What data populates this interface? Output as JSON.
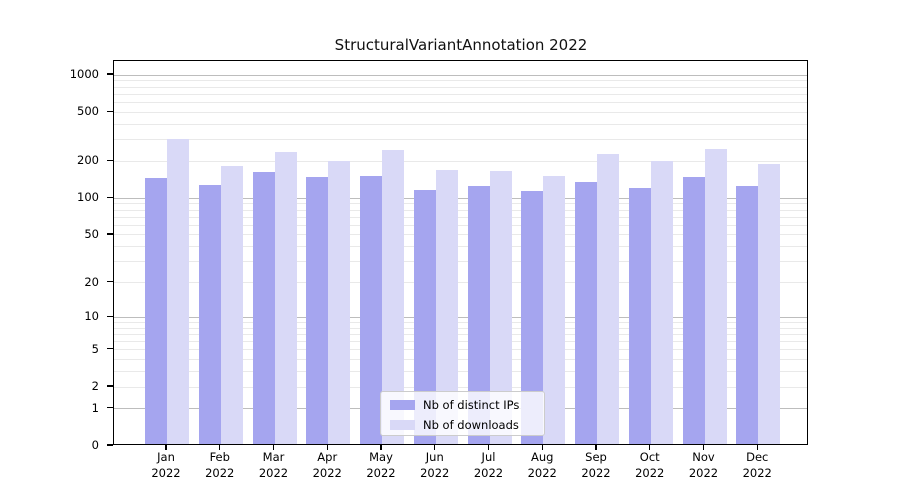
{
  "chart_data": {
    "type": "bar",
    "title": "StructuralVariantAnnotation 2022",
    "categories": [
      "Jan",
      "Feb",
      "Mar",
      "Apr",
      "May",
      "Jun",
      "Jul",
      "Aug",
      "Sep",
      "Oct",
      "Nov",
      "Dec"
    ],
    "category_year": "2022",
    "series": [
      {
        "name": "Nb of distinct IPs",
        "color": "#a5a5ef",
        "values": [
          144,
          126,
          162,
          147,
          148,
          114,
          124,
          113,
          132,
          119,
          145,
          124
        ]
      },
      {
        "name": "Nb of downloads",
        "color": "#d9d9f7",
        "values": [
          298,
          181,
          233,
          197,
          244,
          167,
          164,
          150,
          227,
          198,
          247,
          186
        ]
      }
    ],
    "y_axis": {
      "scale": "log1p",
      "tick_labels": [
        1000,
        500,
        200,
        100,
        50,
        20,
        10,
        5,
        2,
        1,
        0
      ],
      "minor_gridlines": [
        3,
        4,
        6,
        7,
        8,
        9,
        30,
        40,
        60,
        70,
        80,
        90,
        300,
        400,
        600,
        700,
        800,
        900
      ],
      "major_gridlines": [
        1,
        10,
        100,
        1000
      ],
      "ylim": [
        0,
        1300
      ]
    },
    "legend": {
      "position": "lower center"
    },
    "grid": true
  },
  "colors": {
    "major_gridline": "#bdbdbd",
    "minor_gridline": "#e9e9e9",
    "axis": "#000000",
    "legend_border": "#cccccc",
    "background": "#ffffff"
  }
}
